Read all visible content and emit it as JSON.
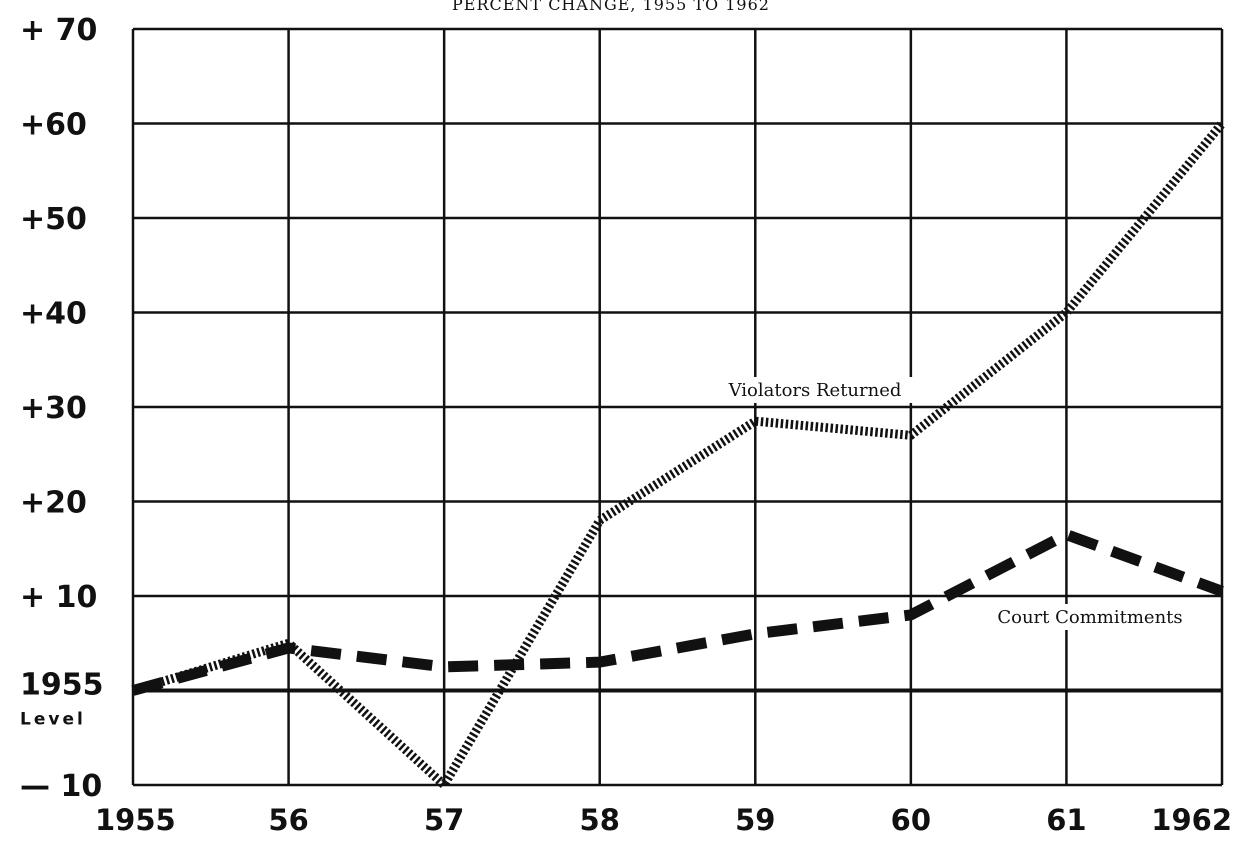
{
  "chart_data": {
    "type": "line",
    "title": "PERCENT CHANGE, 1955 TO 1962",
    "x": [
      "1955",
      "56",
      "57",
      "58",
      "59",
      "60",
      "61",
      "1962"
    ],
    "ylim": [
      -10,
      70
    ],
    "baseline": 0,
    "baseline_label_line1": "1955",
    "baseline_label_line2": "Level",
    "yticks": [
      {
        "value": 70,
        "label": "+ 70"
      },
      {
        "value": 60,
        "label": "+60"
      },
      {
        "value": 50,
        "label": "+50"
      },
      {
        "value": 40,
        "label": "+40"
      },
      {
        "value": 30,
        "label": "+30"
      },
      {
        "value": 20,
        "label": "+20"
      },
      {
        "value": 10,
        "label": "+ 10"
      },
      {
        "value": -10,
        "label": "— 10"
      }
    ],
    "grid": true,
    "series": [
      {
        "name": "Violators Returned",
        "style": "dotted",
        "color": "#111111",
        "values": [
          0,
          5,
          -10,
          18,
          28.5,
          27,
          40,
          60
        ]
      },
      {
        "name": "Court Commitments",
        "style": "dashed",
        "color": "#111111",
        "values": [
          0,
          4.5,
          2.5,
          3,
          6,
          8,
          16.5,
          10.5
        ]
      }
    ]
  }
}
